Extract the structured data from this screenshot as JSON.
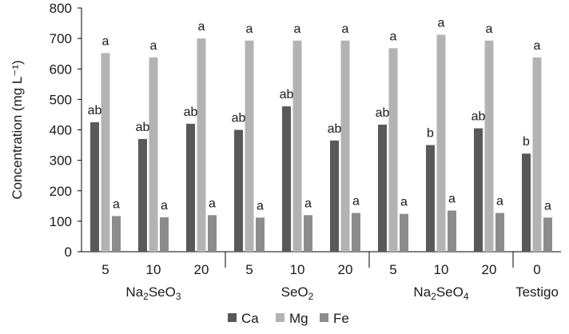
{
  "chart_data": {
    "type": "bar",
    "ylabel": "Concentration (mg L⁻¹)",
    "ylim": [
      0,
      800
    ],
    "yticks": [
      0,
      100,
      200,
      300,
      400,
      500,
      600,
      700,
      800
    ],
    "grid": false,
    "legend_position": "bottom-center",
    "groups": [
      {
        "label_base": "Na",
        "label_sub1": "2",
        "label_mid": "SeO",
        "label_sub2": "3",
        "doses": [
          "5",
          "10",
          "20"
        ]
      },
      {
        "label_base": "SeO",
        "label_sub1": "2",
        "label_mid": "",
        "label_sub2": "",
        "doses": [
          "5",
          "10",
          "20"
        ]
      },
      {
        "label_base": "Na",
        "label_sub1": "2",
        "label_mid": "SeO",
        "label_sub2": "4",
        "doses": [
          "5",
          "10",
          "20"
        ]
      },
      {
        "label_base": "Testigo",
        "label_sub1": "",
        "label_mid": "",
        "label_sub2": "",
        "doses": [
          "0"
        ]
      }
    ],
    "categories": [
      "5",
      "10",
      "20",
      "5",
      "10",
      "20",
      "5",
      "10",
      "20",
      "0"
    ],
    "series": [
      {
        "name": "Ca",
        "color": "#595959",
        "values": [
          425,
          370,
          420,
          400,
          477,
          365,
          417,
          350,
          405,
          322
        ],
        "labels": [
          "ab",
          "ab",
          "ab",
          "ab",
          "ab",
          "ab",
          "ab",
          "b",
          "ab",
          "b"
        ]
      },
      {
        "name": "Mg",
        "color": "#b3b3b3",
        "values": [
          652,
          638,
          700,
          693,
          693,
          693,
          668,
          712,
          693,
          638
        ],
        "labels": [
          "a",
          "a",
          "a",
          "a",
          "a",
          "a",
          "a",
          "a",
          "a",
          "a"
        ]
      },
      {
        "name": "Fe",
        "color": "#8c8c8c",
        "values": [
          117,
          113,
          120,
          112,
          120,
          127,
          124,
          135,
          127,
          112
        ],
        "labels": [
          "a",
          "a",
          "a",
          "a",
          "a",
          "a",
          "a",
          "a",
          "a",
          "a"
        ]
      }
    ]
  }
}
